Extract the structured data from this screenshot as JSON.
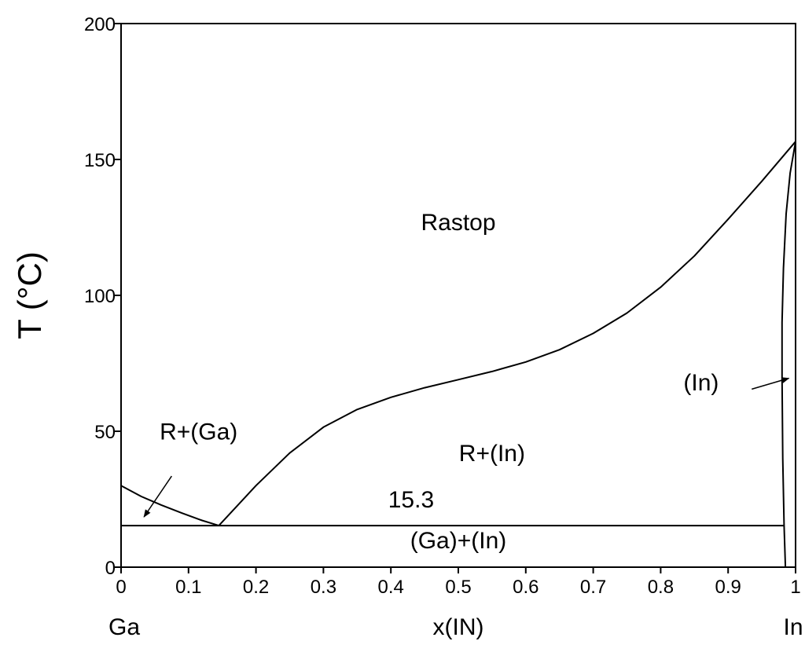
{
  "chart_data": {
    "type": "line",
    "title": "",
    "xlabel": "x(IN)",
    "ylabel": "T (°C)",
    "xlim": [
      0,
      1
    ],
    "ylim": [
      0,
      200
    ],
    "x_ticks": [
      "0",
      "0.1",
      "0.2",
      "0.3",
      "0.4",
      "0.5",
      "0.6",
      "0.7",
      "0.8",
      "0.9",
      "1"
    ],
    "y_ticks": [
      "0",
      "50",
      "100",
      "150",
      "200"
    ],
    "endpoint_labels": {
      "left": "Ga",
      "right": "In"
    },
    "grid": false,
    "series": [
      {
        "x": [
          0.0,
          0.03,
          0.06,
          0.09,
          0.12,
          0.145
        ],
        "y": [
          30.0,
          26.0,
          22.8,
          19.9,
          17.2,
          15.3
        ]
      },
      {
        "x": [
          0.145,
          0.2,
          0.25,
          0.3,
          0.35,
          0.4,
          0.45,
          0.5,
          0.55,
          0.6,
          0.65,
          0.7,
          0.75,
          0.8,
          0.85,
          0.9,
          0.95,
          1.0
        ],
        "y": [
          15.3,
          30.0,
          42.0,
          51.5,
          58.0,
          62.5,
          66.0,
          69.0,
          72.0,
          75.5,
          80.0,
          86.0,
          93.5,
          103.0,
          114.5,
          128.0,
          142.0,
          156.6
        ]
      },
      {
        "x": [
          0.985,
          0.983,
          0.981,
          0.98,
          0.98,
          0.982,
          0.986,
          0.992,
          1.0
        ],
        "y": [
          0.0,
          15.3,
          40.0,
          70.0,
          90.0,
          110.0,
          130.0,
          145.0,
          156.6
        ]
      },
      {
        "x": [
          0.0,
          0.983
        ],
        "y": [
          15.3,
          15.3
        ]
      }
    ],
    "annotations": [
      {
        "text": "Rastop",
        "x": 0.5,
        "y": 124
      },
      {
        "text": "R+(Ga)",
        "x": 0.115,
        "y": 47
      },
      {
        "text": "R+(In)",
        "x": 0.55,
        "y": 39
      },
      {
        "text": "15.3",
        "x": 0.43,
        "y": 22
      },
      {
        "text": "(Ga)+(In)",
        "x": 0.5,
        "y": 7
      },
      {
        "text": "(In)",
        "x": 0.86,
        "y": 65
      }
    ],
    "arrows": [
      {
        "from": [
          0.075,
          33.5
        ],
        "to": [
          0.034,
          18.5
        ]
      },
      {
        "from": [
          0.935,
          65.5
        ],
        "to": [
          0.99,
          69.5
        ]
      }
    ]
  }
}
